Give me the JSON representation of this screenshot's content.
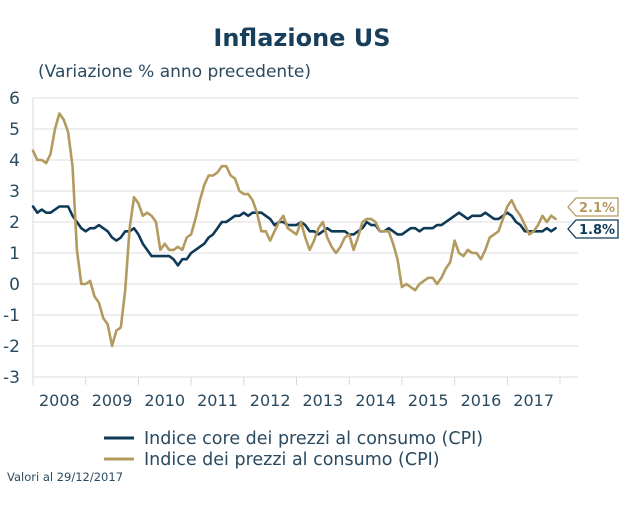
{
  "chart_data": {
    "type": "line",
    "title": "Inflazione US",
    "subtitle": "(Variazione % anno precedente)",
    "xlabel": "",
    "ylabel": "",
    "ylim": [
      -3,
      6
    ],
    "yticks": [
      "6",
      "5",
      "4",
      "3",
      "2",
      "1",
      "0",
      "-1",
      "-2",
      "-3"
    ],
    "ytick_values": [
      6,
      5,
      4,
      3,
      2,
      1,
      0,
      -1,
      -2,
      -3
    ],
    "xticks": [
      "2008",
      "2009",
      "2010",
      "2011",
      "2012",
      "2013",
      "2014",
      "2015",
      "2016",
      "2017"
    ],
    "x_start": "2008-01",
    "x_end": "2017-12",
    "x_frequency": "monthly",
    "grid": true,
    "legend_position": "bottom",
    "series": [
      {
        "name": "Indice core dei prezzi al consumo (CPI)",
        "key": "core",
        "color": "#0f3a57",
        "last_value_label": "1.8%",
        "values": [
          2.5,
          2.3,
          2.4,
          2.3,
          2.3,
          2.4,
          2.5,
          2.5,
          2.5,
          2.2,
          2.0,
          1.8,
          1.7,
          1.8,
          1.8,
          1.9,
          1.8,
          1.7,
          1.5,
          1.4,
          1.5,
          1.7,
          1.7,
          1.8,
          1.6,
          1.3,
          1.1,
          0.9,
          0.9,
          0.9,
          0.9,
          0.9,
          0.8,
          0.6,
          0.8,
          0.8,
          1.0,
          1.1,
          1.2,
          1.3,
          1.5,
          1.6,
          1.8,
          2.0,
          2.0,
          2.1,
          2.2,
          2.2,
          2.3,
          2.2,
          2.3,
          2.3,
          2.3,
          2.2,
          2.1,
          1.9,
          2.0,
          2.0,
          1.9,
          1.9,
          1.9,
          2.0,
          1.9,
          1.7,
          1.7,
          1.6,
          1.7,
          1.8,
          1.7,
          1.7,
          1.7,
          1.7,
          1.6,
          1.6,
          1.7,
          1.8,
          2.0,
          1.9,
          1.9,
          1.7,
          1.7,
          1.8,
          1.7,
          1.6,
          1.6,
          1.7,
          1.8,
          1.8,
          1.7,
          1.8,
          1.8,
          1.8,
          1.9,
          1.9,
          2.0,
          2.1,
          2.2,
          2.3,
          2.2,
          2.1,
          2.2,
          2.2,
          2.2,
          2.3,
          2.2,
          2.1,
          2.1,
          2.2,
          2.3,
          2.2,
          2.0,
          1.9,
          1.7,
          1.7,
          1.7,
          1.7,
          1.7,
          1.8,
          1.7,
          1.8
        ]
      },
      {
        "name": "Indice dei prezzi al consumo (CPI)",
        "key": "headline",
        "color": "#b39a5f",
        "last_value_label": "2.1%",
        "values": [
          4.3,
          4.0,
          4.0,
          3.9,
          4.2,
          5.0,
          5.5,
          5.3,
          4.9,
          3.8,
          1.1,
          0.0,
          0.0,
          0.1,
          -0.4,
          -0.6,
          -1.1,
          -1.3,
          -2.0,
          -1.5,
          -1.4,
          -0.2,
          1.8,
          2.8,
          2.6,
          2.2,
          2.3,
          2.2,
          2.0,
          1.1,
          1.3,
          1.1,
          1.1,
          1.2,
          1.1,
          1.5,
          1.6,
          2.1,
          2.7,
          3.2,
          3.5,
          3.5,
          3.6,
          3.8,
          3.8,
          3.5,
          3.4,
          3.0,
          2.9,
          2.9,
          2.7,
          2.3,
          1.7,
          1.7,
          1.4,
          1.7,
          2.0,
          2.2,
          1.8,
          1.7,
          1.6,
          2.0,
          1.5,
          1.1,
          1.4,
          1.8,
          2.0,
          1.5,
          1.2,
          1.0,
          1.2,
          1.5,
          1.6,
          1.1,
          1.5,
          2.0,
          2.1,
          2.1,
          2.0,
          1.7,
          1.7,
          1.7,
          1.3,
          0.8,
          -0.1,
          0.0,
          -0.1,
          -0.2,
          0.0,
          0.1,
          0.2,
          0.2,
          0.0,
          0.2,
          0.5,
          0.7,
          1.4,
          1.0,
          0.9,
          1.1,
          1.0,
          1.0,
          0.8,
          1.1,
          1.5,
          1.6,
          1.7,
          2.1,
          2.5,
          2.7,
          2.4,
          2.2,
          1.9,
          1.6,
          1.7,
          1.9,
          2.2,
          2.0,
          2.2,
          2.1
        ]
      }
    ],
    "annotations": {
      "note": "Valori al 29/12/2017"
    }
  }
}
